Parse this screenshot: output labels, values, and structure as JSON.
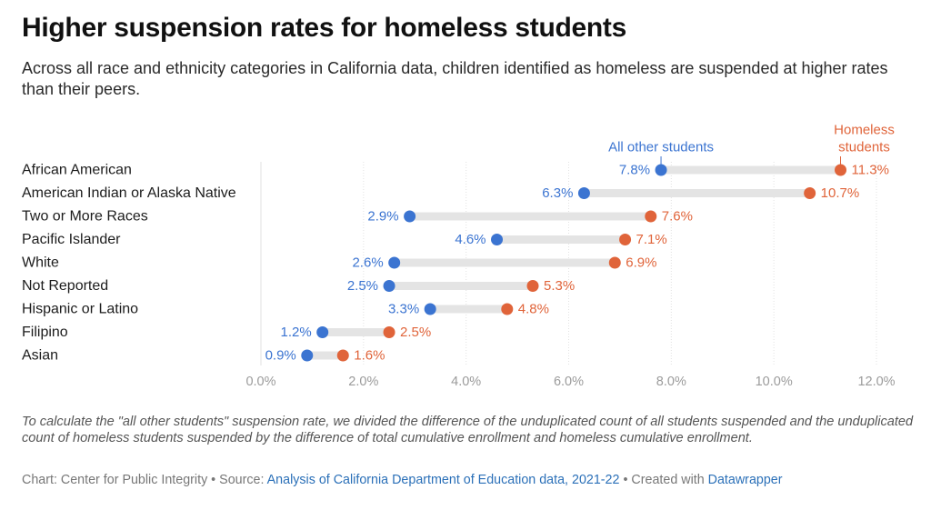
{
  "title": "Higher suspension rates for homeless students",
  "subtitle": "Across all race and ethnicity categories in California data, children identified as homeless are suspended at higher rates than their peers.",
  "notes": "To calculate the \"all other students\" suspension rate, we divided the difference of the unduplicated count of all students suspended and the unduplicated count of homeless students suspended by the difference of total cumulative enrollment and homeless cumulative enrollment.",
  "source": {
    "chart_prefix": "Chart: Center for Public Integrity • Source: ",
    "source_link": "Analysis of California Department of Education data, 2021-22",
    "created_prefix": " • Created with ",
    "created_link": "Datawrapper"
  },
  "colors": {
    "other": "#3b74d1",
    "homeless": "#e0643a",
    "bar": "#e4e4e4",
    "grid": "#e2e2e2",
    "tick": "#9b9b9b"
  },
  "chart_data": {
    "type": "dot-range",
    "categories": [
      "African American",
      "American Indian or Alaska Native",
      "Two or More Races",
      "Pacific Islander",
      "White",
      "Not Reported",
      "Hispanic or Latino",
      "Filipino",
      "Asian"
    ],
    "series": [
      {
        "name": "All other students",
        "values": [
          7.8,
          6.3,
          2.9,
          4.6,
          2.6,
          2.5,
          3.3,
          1.2,
          0.9
        ]
      },
      {
        "name": "Homeless students",
        "values": [
          11.3,
          10.7,
          7.6,
          7.1,
          6.9,
          5.3,
          4.8,
          2.5,
          1.6
        ]
      }
    ],
    "value_suffix": "%",
    "xlim": [
      0,
      12
    ],
    "xticks": [
      "0.0%",
      "2.0%",
      "4.0%",
      "6.0%",
      "8.0%",
      "10.0%",
      "12.0%"
    ],
    "xtick_values": [
      0,
      2,
      4,
      6,
      8,
      10,
      12
    ],
    "grid": true,
    "series_labels": [
      {
        "lines": [
          "All other students"
        ]
      },
      {
        "lines": [
          "Homeless",
          "students"
        ]
      }
    ]
  }
}
